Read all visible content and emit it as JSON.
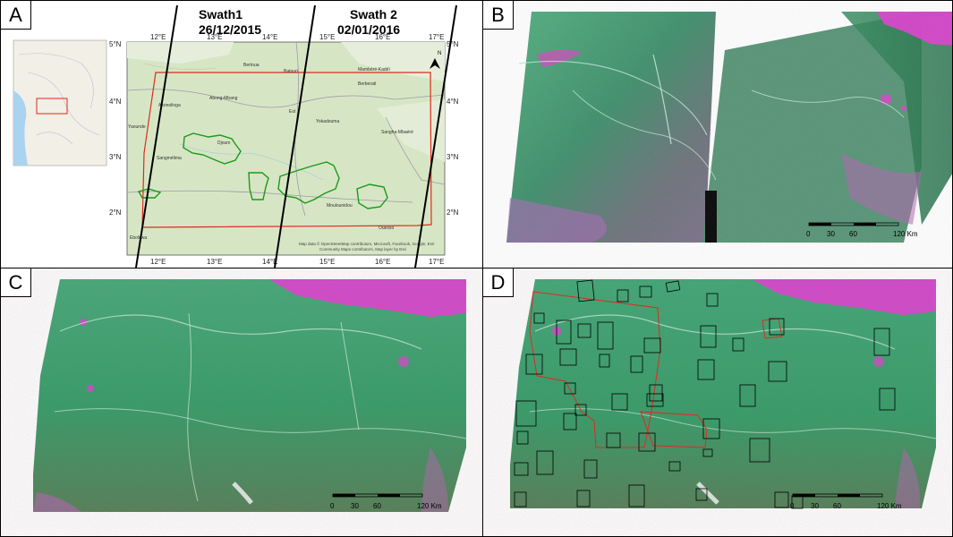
{
  "panels": [
    {
      "label": "A"
    },
    {
      "label": "B"
    },
    {
      "label": "C"
    },
    {
      "label": "D"
    }
  ],
  "map_a": {
    "swath1_name": "Swath1",
    "swath1_date": "26/12/2015",
    "swath2_name": "Swath 2",
    "swath2_date": "02/01/2016",
    "top_ticks": [
      "12°E",
      "13°E",
      "14°E",
      "15°E",
      "16°E",
      "17°E"
    ],
    "bottom_ticks": [
      "12°E",
      "13°E",
      "14°E",
      "15°E",
      "16°E",
      "17°E"
    ],
    "left_ticks": [
      "5°N",
      "4°N",
      "3°N",
      "2°N"
    ],
    "right_ticks": [
      "5°N",
      "4°N",
      "3°N",
      "2°N"
    ],
    "places": [
      "Bertoua",
      "Batouri",
      "Mambéré-Kadéï",
      "Berberati",
      "Abong-Mbang",
      "Akonolinga",
      "Yokadouma",
      "Sangha-Mbaéré",
      "Djoum",
      "Sangmélima",
      "Moulounidou",
      "Ouesso",
      "Est",
      "Yaounde",
      "Ebolowa"
    ],
    "attribution_1": "Map data © OpenStreetMap contributors, Microsoft, Facebook, Google, Esri",
    "attribution_2": "Community Maps contributors, Map layer by Esri",
    "north_label": "N"
  },
  "scalebar": {
    "ticks": [
      "0",
      "30",
      "60"
    ],
    "end_label": "120 Km"
  },
  "colors": {
    "forest": "#2f9a63",
    "savanna": "#e23ad2",
    "aoi_outline": "#e02a1f",
    "protected_area": "#1a9a1a",
    "swath_line": "#000000"
  }
}
